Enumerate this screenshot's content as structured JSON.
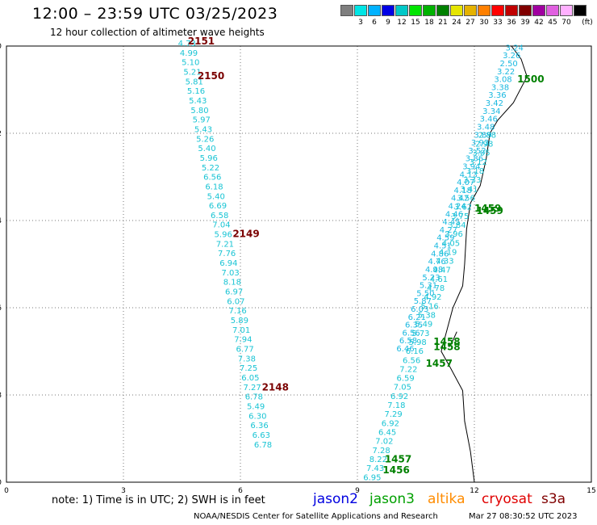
{
  "header": {
    "title": "12:00 – 23:59 UTC 03/25/2023",
    "subtitle": "12 hour collection of altimeter wave heights"
  },
  "color_scale": {
    "unit_label": "(ft)",
    "items": [
      {
        "color": "#7f7f7f",
        "label": ""
      },
      {
        "color": "#00e5e5",
        "label": "3"
      },
      {
        "color": "#00b2ff",
        "label": "6"
      },
      {
        "color": "#0000e5",
        "label": "9"
      },
      {
        "color": "#00c8c8",
        "label": "12"
      },
      {
        "color": "#00e500",
        "label": "15"
      },
      {
        "color": "#00b200",
        "label": "18"
      },
      {
        "color": "#008000",
        "label": "21"
      },
      {
        "color": "#e5e500",
        "label": "24"
      },
      {
        "color": "#e5b200",
        "label": "27"
      },
      {
        "color": "#ff8000",
        "label": "30"
      },
      {
        "color": "#ff0000",
        "label": "33"
      },
      {
        "color": "#c00000",
        "label": "36"
      },
      {
        "color": "#800000",
        "label": "39"
      },
      {
        "color": "#a000a0",
        "label": "42"
      },
      {
        "color": "#e060e0",
        "label": "45"
      },
      {
        "color": "#ffb0ff",
        "label": "70"
      },
      {
        "color": "#000000",
        "label": ""
      }
    ]
  },
  "axes": {
    "x_ticks": [
      "0",
      "3",
      "6",
      "9",
      "12",
      "15"
    ],
    "y_ticks": [
      "-10",
      "-12",
      "-14",
      "-16",
      "-18",
      "-20"
    ],
    "x_range": [
      0,
      15
    ],
    "y_range": [
      -20,
      -10
    ]
  },
  "tracks": {
    "west": {
      "color": "#19c4d4",
      "values": [
        "4.73",
        "4.99",
        "5.10",
        "5.21",
        "5.81",
        "5.16",
        "5.43",
        "5.80",
        "5.97",
        "5.43",
        "5.26",
        "5.40",
        "5.96",
        "5.22",
        "6.56",
        "6.18",
        "5.40",
        "6.69",
        "6.58",
        "7.04",
        "5.96",
        "7.21",
        "7.76",
        "6.94",
        "7.03",
        "8.18",
        "6.97",
        "6.07",
        "7.16",
        "5.89",
        "7.01",
        "7.94",
        "6.77",
        "7.38",
        "7.25",
        "6.05",
        "7.27",
        "6.78",
        "5.49",
        "6.30",
        "6.36",
        "6.63",
        "6.78"
      ],
      "start": [
        4.4,
        -10.0
      ],
      "end": [
        6.35,
        -19.2
      ]
    },
    "east_a": {
      "color": "#19b8e0",
      "values": [
        "3.24",
        "3.26",
        "2.50",
        "3.22",
        "3.08",
        "3.38",
        "3.36",
        "3.42",
        "3.34",
        "3.46",
        "3.48",
        "3.89",
        "3.93",
        "3.52",
        "3.86",
        "3.94",
        "4.13",
        "4.07",
        "4.18",
        "4.42",
        "4.24",
        "4.46",
        "4.45",
        "4.27",
        "4.59",
        "4.51",
        "4.86",
        "4.76",
        "4.98",
        "5.23",
        "5.31",
        "5.50",
        "5.87",
        "6.03",
        "6.21",
        "6.35",
        "6.56",
        "6.58",
        "6.46"
      ],
      "start": [
        12.8,
        -10.1
      ],
      "end": [
        10.0,
        -17.0
      ]
    },
    "east_b": {
      "color": "#19c4d4",
      "values": [
        "2.88",
        "2.98",
        "3.05",
        "3.12",
        "3.18",
        "3.33",
        "3.41",
        "3.56",
        "3.62",
        "3.75",
        "3.84",
        "3.96",
        "4.05",
        "4.19",
        "4.33",
        "4.47",
        "4.61",
        "4.78",
        "4.92",
        "5.16",
        "5.38",
        "5.49",
        "5.73",
        "5.98",
        "6.16",
        "6.56",
        "7.22",
        "6.59",
        "7.05",
        "6.92",
        "7.18",
        "7.29",
        "6.92",
        "6.45",
        "7.02",
        "7.28",
        "8.22",
        "7.43",
        "6.95"
      ],
      "start": [
        12.1,
        -12.1
      ],
      "end": [
        9.15,
        -19.95
      ]
    }
  },
  "track_labels": [
    {
      "text": "2151",
      "color": "#7a0000",
      "x": 4.65,
      "y": -9.96
    },
    {
      "text": "2150",
      "color": "#7a0000",
      "x": 4.9,
      "y": -10.76
    },
    {
      "text": "2149",
      "color": "#7a0000",
      "x": 5.8,
      "y": -14.38
    },
    {
      "text": "2148",
      "color": "#7a0000",
      "x": 6.55,
      "y": -17.9
    },
    {
      "text": "1500",
      "color": "#008000",
      "x": 13.1,
      "y": -10.83
    },
    {
      "text": "1459",
      "color": "#008000",
      "x": 12.0,
      "y": -13.8
    },
    {
      "text": "1459",
      "color": "#008000",
      "x": 12.05,
      "y": -13.85
    },
    {
      "text": "1458",
      "color": "#008000",
      "x": 10.95,
      "y": -16.85
    },
    {
      "text": "1458",
      "color": "#008000",
      "x": 10.95,
      "y": -16.97
    },
    {
      "text": "1457",
      "color": "#008000",
      "x": 10.75,
      "y": -17.35
    },
    {
      "text": "1457",
      "color": "#008000",
      "x": 9.7,
      "y": -19.55
    },
    {
      "text": "1456",
      "color": "#008000",
      "x": 9.65,
      "y": -19.8
    }
  ],
  "legend": {
    "note": "note: 1) Time is in UTC; 2) SWH is in feet",
    "satellites": [
      {
        "name": "jason2",
        "color": "#0000e0"
      },
      {
        "name": "jason3",
        "color": "#00a000"
      },
      {
        "name": "altika",
        "color": "#ff8c00"
      },
      {
        "name": "cryosat",
        "color": "#e00000"
      },
      {
        "name": "s3a",
        "color": "#800000"
      }
    ]
  },
  "footer": {
    "credit": "NOAA/NESDIS Center for Satellite Applications and Research",
    "timestamp": "Mar 27 08:30:52 UTC 2023"
  }
}
